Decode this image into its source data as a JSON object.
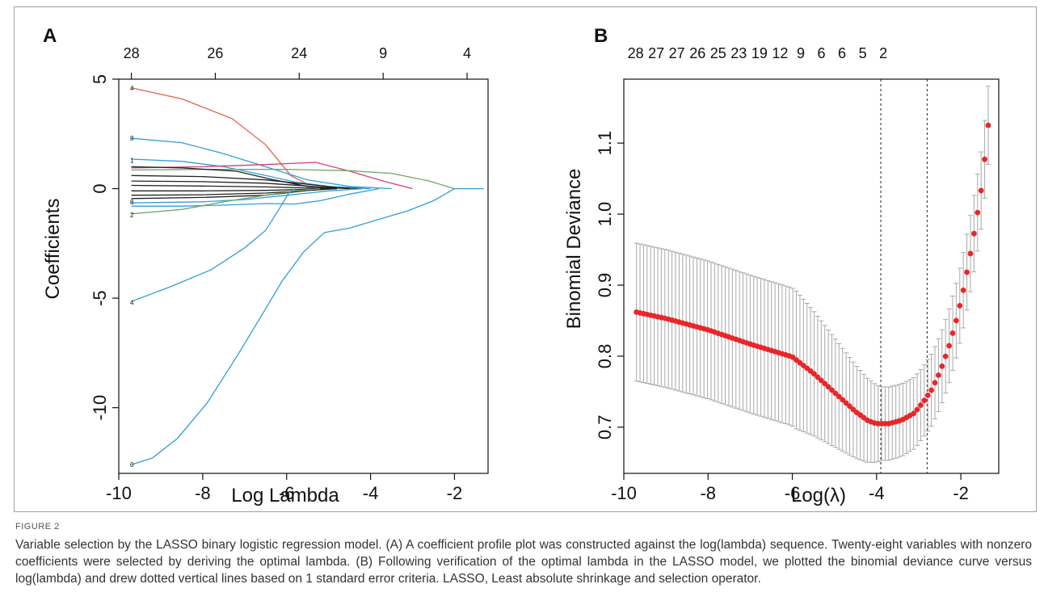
{
  "panelA": {
    "panel_label": "A",
    "chart_data": {
      "type": "line",
      "xlabel": "Log Lambda",
      "ylabel": "Coefficients",
      "xlim": [
        -10,
        -1.2
      ],
      "ylim": [
        -13,
        5
      ],
      "x_ticks": [
        -10,
        -8,
        -6,
        -4,
        -2
      ],
      "y_ticks": [
        5,
        0,
        -5,
        -10
      ],
      "top_axis": {
        "positions": [
          -9.7,
          -7.7,
          -5.7,
          -3.7,
          -1.7
        ],
        "labels": [
          "28",
          "26",
          "24",
          "9",
          "4"
        ]
      },
      "left_labels": [
        {
          "y": 4.6,
          "text": "4"
        },
        {
          "y": 2.3,
          "text": "8"
        },
        {
          "y": 1.3,
          "text": "1"
        },
        {
          "y": -0.6,
          "text": "8"
        },
        {
          "y": -1.2,
          "text": "2"
        },
        {
          "y": -5.2,
          "text": "4"
        },
        {
          "y": -12.6,
          "text": "0"
        }
      ],
      "series": [
        {
          "color": "#e06050",
          "points": [
            [
              -9.7,
              4.6
            ],
            [
              -8.5,
              4.1
            ],
            [
              -7.3,
              3.2
            ],
            [
              -6.5,
              2.0
            ],
            [
              -5.9,
              0.6
            ],
            [
              -5.5,
              0.2
            ],
            [
              -4.5,
              0.0
            ]
          ]
        },
        {
          "color": "#2f9fd8",
          "points": [
            [
              -9.7,
              2.3
            ],
            [
              -8.5,
              2.1
            ],
            [
              -7.5,
              1.6
            ],
            [
              -6.5,
              1.0
            ],
            [
              -5.5,
              0.4
            ],
            [
              -4.5,
              0.1
            ],
            [
              -3.5,
              0.0
            ]
          ]
        },
        {
          "color": "#2f9fd8",
          "points": [
            [
              -9.7,
              1.35
            ],
            [
              -8.5,
              1.25
            ],
            [
              -7.5,
              1.0
            ],
            [
              -6.5,
              0.6
            ],
            [
              -5.8,
              0.3
            ],
            [
              -5.0,
              0.1
            ],
            [
              -4.0,
              0.0
            ]
          ]
        },
        {
          "color": "#d6407a",
          "points": [
            [
              -9.7,
              0.95
            ],
            [
              -8.0,
              1.0
            ],
            [
              -6.5,
              1.1
            ],
            [
              -5.3,
              1.2
            ],
            [
              -4.5,
              0.8
            ],
            [
              -3.7,
              0.35
            ],
            [
              -3.0,
              0.0
            ]
          ]
        },
        {
          "color": "#6ca86c",
          "points": [
            [
              -9.7,
              0.85
            ],
            [
              -8.0,
              0.88
            ],
            [
              -6.0,
              0.88
            ],
            [
              -4.5,
              0.82
            ],
            [
              -3.5,
              0.7
            ],
            [
              -2.6,
              0.35
            ],
            [
              -2.0,
              0.0
            ]
          ]
        },
        {
          "color": "#222222",
          "points": [
            [
              -9.7,
              1.0
            ],
            [
              -8.5,
              0.95
            ],
            [
              -7.2,
              0.8
            ],
            [
              -6.3,
              0.4
            ],
            [
              -5.5,
              0.1
            ],
            [
              -4.5,
              0.0
            ]
          ]
        },
        {
          "color": "#222222",
          "points": [
            [
              -9.7,
              0.6
            ],
            [
              -8.0,
              0.55
            ],
            [
              -6.5,
              0.4
            ],
            [
              -5.5,
              0.2
            ],
            [
              -4.8,
              0.05
            ],
            [
              -4.2,
              0.0
            ]
          ]
        },
        {
          "color": "#222222",
          "points": [
            [
              -9.7,
              0.35
            ],
            [
              -8.0,
              0.32
            ],
            [
              -6.5,
              0.25
            ],
            [
              -5.5,
              0.12
            ],
            [
              -4.8,
              0.0
            ]
          ]
        },
        {
          "color": "#222222",
          "points": [
            [
              -9.7,
              0.15
            ],
            [
              -8.0,
              0.12
            ],
            [
              -6.5,
              0.08
            ],
            [
              -5.5,
              0.03
            ],
            [
              -4.8,
              0.0
            ]
          ]
        },
        {
          "color": "#222222",
          "points": [
            [
              -9.7,
              -0.1
            ],
            [
              -8.0,
              -0.1
            ],
            [
              -6.5,
              -0.08
            ],
            [
              -5.5,
              -0.03
            ],
            [
              -4.8,
              0.0
            ]
          ]
        },
        {
          "color": "#222222",
          "points": [
            [
              -9.7,
              -0.3
            ],
            [
              -8.0,
              -0.28
            ],
            [
              -6.5,
              -0.2
            ],
            [
              -5.5,
              -0.08
            ],
            [
              -4.8,
              0.0
            ]
          ]
        },
        {
          "color": "#222222",
          "points": [
            [
              -9.7,
              -0.45
            ],
            [
              -8.0,
              -0.4
            ],
            [
              -6.5,
              -0.3
            ],
            [
              -5.6,
              -0.1
            ],
            [
              -5.0,
              0.0
            ]
          ]
        },
        {
          "color": "#2f9fd8",
          "points": [
            [
              -9.7,
              -0.65
            ],
            [
              -8.0,
              -0.6
            ],
            [
              -7.0,
              -0.5
            ],
            [
              -6.0,
              -0.3
            ],
            [
              -5.0,
              -0.1
            ],
            [
              -4.2,
              0.0
            ]
          ]
        },
        {
          "color": "#2f9fd8",
          "points": [
            [
              -9.7,
              -0.8
            ],
            [
              -8.5,
              -0.8
            ],
            [
              -7.5,
              -0.75
            ],
            [
              -6.5,
              -0.68
            ],
            [
              -5.8,
              -0.7
            ],
            [
              -5.2,
              -0.55
            ],
            [
              -4.5,
              -0.25
            ],
            [
              -3.8,
              0.0
            ]
          ]
        },
        {
          "color": "#6ca86c",
          "points": [
            [
              -9.7,
              -1.15
            ],
            [
              -8.5,
              -0.95
            ],
            [
              -7.5,
              -0.6
            ],
            [
              -6.5,
              -0.3
            ],
            [
              -5.8,
              -0.1
            ],
            [
              -5.2,
              0.0
            ]
          ]
        },
        {
          "color": "#2f9fd8",
          "points": [
            [
              -9.7,
              -5.15
            ],
            [
              -8.8,
              -4.5
            ],
            [
              -7.8,
              -3.7
            ],
            [
              -7.0,
              -2.7
            ],
            [
              -6.5,
              -1.9
            ],
            [
              -6.2,
              -1.0
            ],
            [
              -5.95,
              -0.2
            ],
            [
              -5.8,
              0.0
            ]
          ]
        },
        {
          "color": "#2f9fd8",
          "points": [
            [
              -9.7,
              -12.6
            ],
            [
              -9.2,
              -12.3
            ],
            [
              -8.6,
              -11.4
            ],
            [
              -7.9,
              -9.8
            ],
            [
              -7.2,
              -7.7
            ],
            [
              -6.6,
              -5.8
            ],
            [
              -6.1,
              -4.2
            ],
            [
              -5.6,
              -2.9
            ],
            [
              -5.1,
              -2.0
            ],
            [
              -4.5,
              -1.8
            ],
            [
              -3.8,
              -1.4
            ],
            [
              -3.1,
              -1.0
            ],
            [
              -2.5,
              -0.55
            ],
            [
              -2.0,
              0.0
            ],
            [
              -1.3,
              0.0
            ]
          ]
        }
      ]
    }
  },
  "panelB": {
    "panel_label": "B",
    "chart_data": {
      "type": "scatter",
      "xlabel": "Log(λ)",
      "ylabel": "Binomial Deviance",
      "xlim": [
        -10,
        -1.1
      ],
      "ylim": [
        0.635,
        1.19
      ],
      "x_ticks": [
        -10,
        -8,
        -6,
        -4,
        -2
      ],
      "y_ticks": [
        0.7,
        0.8,
        0.9,
        1.0,
        1.1
      ],
      "vlines": [
        -3.9,
        -2.8
      ],
      "top_axis": {
        "positions": [
          -9.72,
          -9.23,
          -8.74,
          -8.25,
          -7.76,
          -7.27,
          -6.78,
          -6.29,
          -5.8,
          -5.31,
          -4.82,
          -4.33,
          -3.84
        ],
        "labels": [
          "28",
          "27",
          "27",
          "26",
          "25",
          "23",
          "19",
          "12",
          "9",
          "6",
          "6",
          "5",
          "2"
        ]
      },
      "error_band": {
        "lower_offset": 0.1,
        "upper_offset": 0.1
      },
      "curve_points": [
        [
          -9.7,
          0.862
        ],
        [
          -9.0,
          0.853
        ],
        [
          -8.0,
          0.837
        ],
        [
          -7.0,
          0.817
        ],
        [
          -6.0,
          0.799
        ],
        [
          -5.5,
          0.776
        ],
        [
          -5.0,
          0.749
        ],
        [
          -4.5,
          0.722
        ],
        [
          -4.2,
          0.709
        ],
        [
          -4.0,
          0.705
        ],
        [
          -3.7,
          0.705
        ],
        [
          -3.4,
          0.71
        ],
        [
          -3.1,
          0.72
        ],
        [
          -2.9,
          0.735
        ],
        [
          -2.7,
          0.752
        ],
        [
          -2.5,
          0.777
        ],
        [
          -2.3,
          0.81
        ],
        [
          -2.1,
          0.852
        ],
        [
          -1.95,
          0.89
        ],
        [
          -1.8,
          0.935
        ],
        [
          -1.65,
          0.985
        ],
        [
          -1.5,
          1.04
        ],
        [
          -1.35,
          1.125
        ]
      ]
    }
  },
  "caption": {
    "label": "FIGURE 2",
    "text": "Variable selection by the LASSO binary logistic regression model. (A) A coefficient profile plot was constructed against the log(lambda) sequence. Twenty-eight variables with nonzero coefficients were selected by deriving the optimal lambda. (B) Following verification of the optimal lambda in the LASSO model, we plotted the binomial deviance curve versus log(lambda) and drew dotted vertical lines based on 1 standard error criteria. LASSO, Least absolute shrinkage and selection operator."
  }
}
